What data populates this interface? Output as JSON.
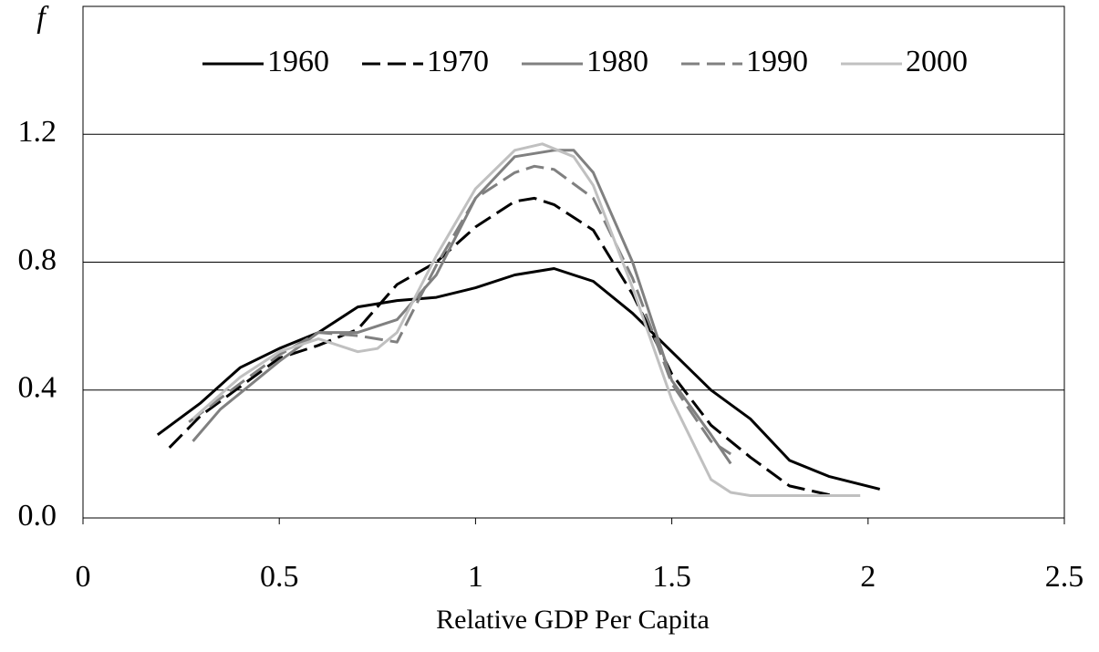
{
  "chart_data": {
    "type": "line",
    "x_label": "Relative GDP Per Capita",
    "y_label": "f",
    "xlim": [
      0,
      2.5
    ],
    "xticks": [
      0,
      0.5,
      1,
      1.5,
      2,
      2.5
    ],
    "ylim": [
      0,
      1.6
    ],
    "yticks": [
      {
        "value": 0,
        "label": "0.0"
      },
      0.4,
      0.8,
      1.2
    ],
    "grid": true,
    "legend": "top",
    "series": [
      {
        "name": "1960",
        "color": "#000000",
        "style": "solid",
        "x": [
          0.19,
          0.3,
          0.4,
          0.5,
          0.6,
          0.7,
          0.8,
          0.9,
          1.0,
          1.1,
          1.2,
          1.3,
          1.4,
          1.5,
          1.6,
          1.7,
          1.8,
          1.9,
          2.03
        ],
        "values": [
          0.26,
          0.36,
          0.47,
          0.53,
          0.58,
          0.66,
          0.68,
          0.69,
          0.72,
          0.76,
          0.78,
          0.74,
          0.64,
          0.52,
          0.4,
          0.31,
          0.18,
          0.13,
          0.09
        ]
      },
      {
        "name": "1970",
        "color": "#000000",
        "style": "dashed",
        "x": [
          0.22,
          0.3,
          0.4,
          0.5,
          0.6,
          0.7,
          0.8,
          0.9,
          1.0,
          1.1,
          1.15,
          1.2,
          1.3,
          1.4,
          1.5,
          1.6,
          1.7,
          1.8,
          1.91
        ],
        "values": [
          0.22,
          0.32,
          0.41,
          0.5,
          0.54,
          0.59,
          0.73,
          0.8,
          0.91,
          0.99,
          1.0,
          0.98,
          0.9,
          0.7,
          0.45,
          0.29,
          0.19,
          0.1,
          0.07
        ]
      },
      {
        "name": "1980",
        "color": "#808080",
        "style": "solid",
        "x": [
          0.28,
          0.35,
          0.4,
          0.5,
          0.6,
          0.7,
          0.8,
          0.9,
          1.0,
          1.1,
          1.2,
          1.25,
          1.3,
          1.4,
          1.5,
          1.6,
          1.65
        ],
        "values": [
          0.24,
          0.34,
          0.39,
          0.49,
          0.58,
          0.58,
          0.62,
          0.76,
          1.0,
          1.13,
          1.15,
          1.15,
          1.08,
          0.8,
          0.43,
          0.26,
          0.17
        ]
      },
      {
        "name": "1990",
        "color": "#808080",
        "style": "dashed",
        "x": [
          0.27,
          0.4,
          0.5,
          0.6,
          0.7,
          0.8,
          0.9,
          1.0,
          1.1,
          1.15,
          1.2,
          1.3,
          1.4,
          1.5,
          1.6,
          1.65
        ],
        "values": [
          0.3,
          0.42,
          0.51,
          0.58,
          0.57,
          0.55,
          0.79,
          1.0,
          1.08,
          1.1,
          1.09,
          1.0,
          0.75,
          0.42,
          0.24,
          0.2
        ]
      },
      {
        "name": "2000",
        "color": "#c0c0c0",
        "style": "solid",
        "x": [
          0.28,
          0.4,
          0.5,
          0.6,
          0.7,
          0.75,
          0.8,
          0.9,
          1.0,
          1.1,
          1.17,
          1.25,
          1.3,
          1.4,
          1.5,
          1.6,
          1.65,
          1.7,
          1.98
        ],
        "values": [
          0.31,
          0.44,
          0.52,
          0.56,
          0.52,
          0.53,
          0.58,
          0.82,
          1.03,
          1.15,
          1.17,
          1.13,
          1.04,
          0.72,
          0.37,
          0.12,
          0.08,
          0.07,
          0.07
        ]
      }
    ]
  }
}
